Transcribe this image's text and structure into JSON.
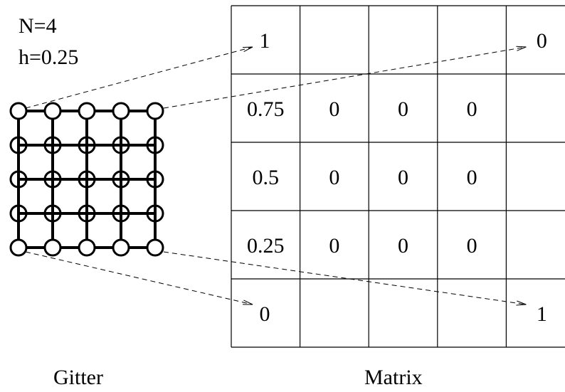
{
  "params": {
    "n_label": "N=4",
    "h_label": "h=0.25"
  },
  "captions": {
    "left": "Gitter",
    "right": "Matrix"
  },
  "grid": {
    "rows": 5,
    "cols": 5
  },
  "matrix": {
    "rows": 5,
    "cols": 5,
    "cells": [
      [
        "1",
        "",
        "",
        "",
        "0"
      ],
      [
        "0.75",
        "0",
        "0",
        "0",
        ""
      ],
      [
        "0.5",
        "0",
        "0",
        "0",
        ""
      ],
      [
        "0.25",
        "0",
        "0",
        "0",
        ""
      ],
      [
        "0",
        "",
        "",
        "",
        "1"
      ]
    ]
  },
  "mappings": [
    {
      "grid_node": [
        0,
        0
      ],
      "matrix_cell": [
        0,
        0
      ]
    },
    {
      "grid_node": [
        0,
        4
      ],
      "matrix_cell": [
        0,
        4
      ]
    },
    {
      "grid_node": [
        4,
        0
      ],
      "matrix_cell": [
        4,
        0
      ]
    },
    {
      "grid_node": [
        4,
        4
      ],
      "matrix_cell": [
        4,
        4
      ]
    }
  ]
}
